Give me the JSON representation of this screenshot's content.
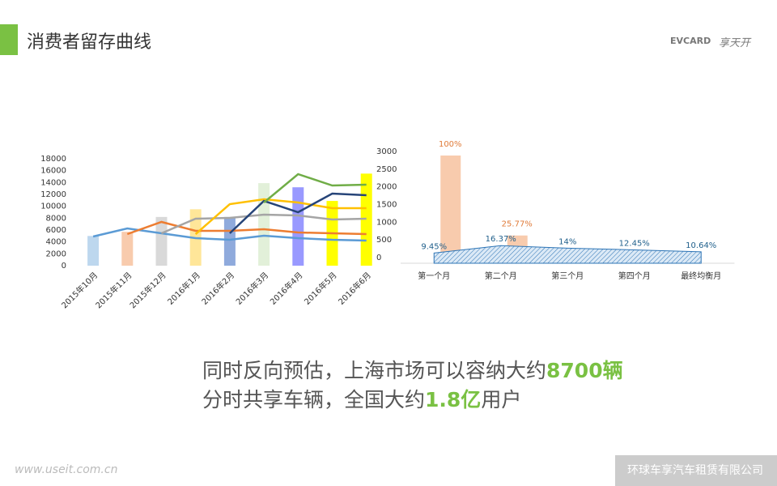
{
  "header": {
    "title": "消费者留存曲线",
    "logos": [
      "EVCARD",
      "享天开"
    ]
  },
  "chart_data": [
    {
      "type": "bar",
      "categories": [
        "2015年10月",
        "2015年11月",
        "2015年12月",
        "2016年1月",
        "2016年2月",
        "2016年3月",
        "2016年4月",
        "2016年5月",
        "2016年6月"
      ],
      "values": [
        5000,
        5700,
        8200,
        9500,
        8200,
        13900,
        13200,
        10900,
        15500
      ],
      "colors": [
        "#bdd7ee",
        "#f8cbad",
        "#d9d9d9",
        "#ffe699",
        "#8faadc",
        "#e2f0d9",
        "#9999ff",
        "#ffff00",
        "#ffff00"
      ],
      "ylim": [
        0,
        18000
      ],
      "yticks": [
        0,
        2000,
        4000,
        6000,
        8000,
        10000,
        12000,
        14000,
        16000,
        18000
      ],
      "y2lim": [
        0,
        3000
      ],
      "y2ticks": [
        0,
        500,
        1000,
        1500,
        2000,
        2500,
        3000
      ],
      "series": [
        {
          "type": "line",
          "axis": "y2",
          "color": "#5b9bd5",
          "values": [
            595,
            824,
            687,
            550,
            504,
            618,
            550,
            504,
            481
          ]
        },
        {
          "type": "line",
          "axis": "y2",
          "color": "#ed7d31",
          "values": [
            null,
            664,
            1008,
            756,
            756,
            802,
            710,
            687,
            664
          ]
        },
        {
          "type": "line",
          "axis": "y2",
          "color": "#a5a5a5",
          "values": [
            null,
            null,
            687,
            1099,
            1122,
            1214,
            1191,
            1076,
            1099
          ]
        },
        {
          "type": "line",
          "axis": "y2",
          "color": "#ffc000",
          "values": [
            null,
            null,
            null,
            664,
            1511,
            1649,
            1557,
            1397,
            1397
          ]
        },
        {
          "type": "line",
          "axis": "y2",
          "color": "#264478",
          "values": [
            null,
            null,
            null,
            null,
            687,
            1603,
            1282,
            1809,
            1763
          ]
        },
        {
          "type": "line",
          "axis": "y2",
          "color": "#70ad47",
          "values": [
            null,
            null,
            null,
            null,
            null,
            1557,
            2359,
            2038,
            2061
          ]
        }
      ]
    },
    {
      "type": "bar",
      "categories": [
        "第一个月",
        "第二个月",
        "第三个月",
        "第四个月",
        "最终均衡月"
      ],
      "series": [
        {
          "type": "bar",
          "color": "#f8cbad",
          "label_color": "#e07b39",
          "values": [
            100,
            25.77,
            null,
            null,
            null
          ],
          "value_labels": [
            "100%",
            "25.77%",
            null,
            null,
            null
          ]
        },
        {
          "type": "area",
          "color": "#2e75b6",
          "label_color": "#1f5f8b",
          "values": [
            9.45,
            16.37,
            14,
            12.45,
            10.64
          ],
          "value_labels": [
            "9.45%",
            "16.37%",
            "14%",
            "12.45%",
            "10.64%"
          ]
        }
      ]
    }
  ],
  "body": {
    "line1": "同时反向预估，上海市场可以容纳大约",
    "line1_em": "8700辆",
    "line2": "分时共享车辆，全国大约",
    "line2_em": "1.8亿",
    "line2_end": "用户"
  },
  "footer": {
    "watermark": "www.useit.com.cn",
    "company": "环球车享汽车租赁有限公司"
  }
}
